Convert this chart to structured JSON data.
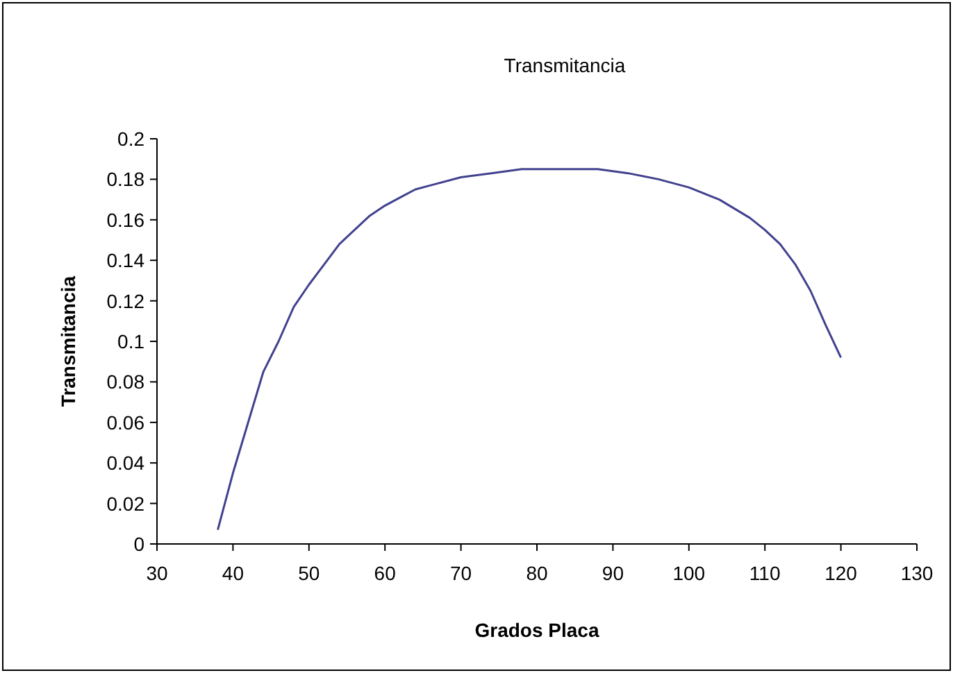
{
  "chart_data": {
    "type": "line",
    "title": "Transmitancia",
    "xlabel": "Grados Placa",
    "ylabel": "Transmitancia",
    "x": [
      38,
      40,
      42,
      44,
      46,
      48,
      50,
      52,
      54,
      56,
      58,
      60,
      62,
      64,
      66,
      70,
      74,
      78,
      88,
      92,
      96,
      100,
      104,
      108,
      110,
      112,
      114,
      116,
      118,
      120
    ],
    "series": [
      {
        "color": "#41418f",
        "values": [
          0.007,
          0.035,
          0.06,
          0.085,
          0.1,
          0.117,
          0.128,
          0.138,
          0.148,
          0.155,
          0.162,
          0.167,
          0.171,
          0.175,
          0.177,
          0.181,
          0.183,
          0.185,
          0.185,
          0.183,
          0.18,
          0.176,
          0.17,
          0.161,
          0.155,
          0.148,
          0.138,
          0.125,
          0.108,
          0.092
        ]
      }
    ],
    "xlim": [
      30,
      130
    ],
    "xticks": [
      30,
      40,
      50,
      60,
      70,
      80,
      90,
      100,
      110,
      120,
      130
    ],
    "ylim": [
      0,
      0.2
    ],
    "yticks": [
      0,
      0.02,
      0.04,
      0.06,
      0.08,
      0.1,
      0.12,
      0.14,
      0.16,
      0.18,
      0.2
    ],
    "grid": false,
    "marker": "none",
    "line_style": "solid"
  }
}
